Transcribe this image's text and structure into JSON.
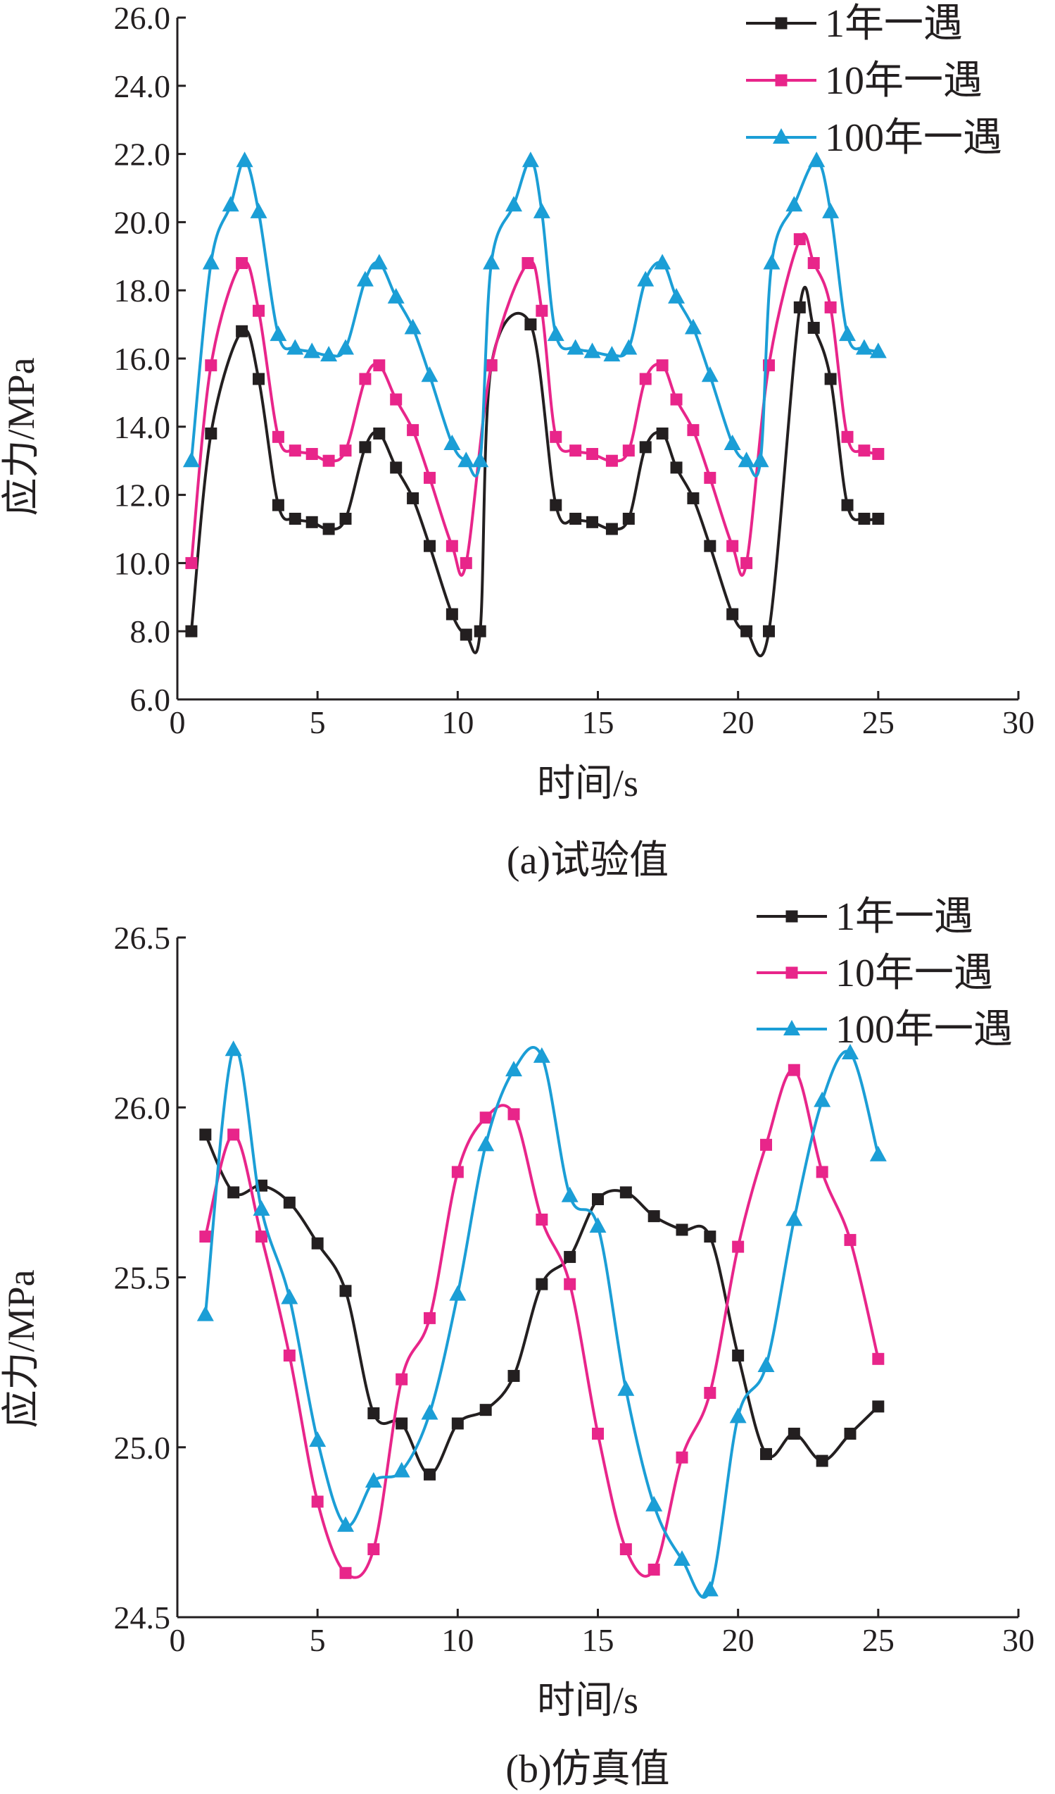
{
  "chart_data": [
    {
      "type": "line",
      "caption": "(a)试验值",
      "xlabel": "时间/s",
      "ylabel": "应力/MPa",
      "xlim": [
        0,
        30
      ],
      "ylim": [
        6.0,
        26.0
      ],
      "xticks": [
        "0",
        "5",
        "10",
        "15",
        "20",
        "25",
        "30"
      ],
      "yticks": [
        "6.0",
        "8.0",
        "10.0",
        "12.0",
        "14.0",
        "16.0",
        "18.0",
        "20.0",
        "22.0",
        "24.0",
        "26.0"
      ],
      "legend_position": "top-right",
      "series": [
        {
          "name": "1年一遇",
          "color": "#231f20",
          "marker": "square",
          "x": [
            0.5,
            1.2,
            2.3,
            2.9,
            3.6,
            4.2,
            4.8,
            5.4,
            6.0,
            6.7,
            7.2,
            7.8,
            8.4,
            9.0,
            9.8,
            10.3,
            10.8,
            11.2,
            12.6,
            13.5,
            14.2,
            14.8,
            15.5,
            16.1,
            16.7,
            17.3,
            17.8,
            18.4,
            19.0,
            19.8,
            20.3,
            21.1,
            22.2,
            22.7,
            23.3,
            23.9,
            24.5,
            25.0
          ],
          "y": [
            8.0,
            13.8,
            16.8,
            15.4,
            11.7,
            11.3,
            11.2,
            11.0,
            11.3,
            13.4,
            13.8,
            12.8,
            11.9,
            10.5,
            8.5,
            7.9,
            8.0,
            15.8,
            17.0,
            11.7,
            11.3,
            11.2,
            11.0,
            11.3,
            13.4,
            13.8,
            12.8,
            11.9,
            10.5,
            8.5,
            8.0,
            8.0,
            17.5,
            16.9,
            15.4,
            11.7,
            11.3,
            11.3
          ]
        },
        {
          "name": "10年一遇",
          "color": "#e8258a",
          "marker": "square",
          "x": [
            0.5,
            1.2,
            2.3,
            2.9,
            3.6,
            4.2,
            4.8,
            5.4,
            6.0,
            6.7,
            7.2,
            7.8,
            8.4,
            9.0,
            9.8,
            10.3,
            11.2,
            12.5,
            13.0,
            13.5,
            14.2,
            14.8,
            15.5,
            16.1,
            16.7,
            17.3,
            17.8,
            18.4,
            19.0,
            19.8,
            20.3,
            21.1,
            22.2,
            22.7,
            23.3,
            23.9,
            24.5,
            25.0
          ],
          "y": [
            10.0,
            15.8,
            18.8,
            17.4,
            13.7,
            13.3,
            13.2,
            13.0,
            13.3,
            15.4,
            15.8,
            14.8,
            13.9,
            12.5,
            10.5,
            10.0,
            15.8,
            18.8,
            17.4,
            13.7,
            13.3,
            13.2,
            13.0,
            13.3,
            15.4,
            15.8,
            14.8,
            13.9,
            12.5,
            10.5,
            10.0,
            15.8,
            19.5,
            18.8,
            17.5,
            13.7,
            13.3,
            13.2
          ]
        },
        {
          "name": "100年一遇",
          "color": "#1b9ed6",
          "marker": "triangle",
          "x": [
            0.5,
            1.2,
            1.9,
            2.4,
            2.9,
            3.6,
            4.2,
            4.8,
            5.4,
            6.0,
            6.7,
            7.2,
            7.8,
            8.4,
            9.0,
            9.8,
            10.3,
            10.8,
            11.2,
            12.0,
            12.6,
            13.0,
            13.5,
            14.2,
            14.8,
            15.5,
            16.1,
            16.7,
            17.3,
            17.8,
            18.4,
            19.0,
            19.8,
            20.3,
            20.8,
            21.2,
            22.0,
            22.8,
            23.3,
            23.9,
            24.5,
            25.0
          ],
          "y": [
            13.0,
            18.8,
            20.5,
            21.8,
            20.3,
            16.7,
            16.3,
            16.2,
            16.1,
            16.3,
            18.3,
            18.8,
            17.8,
            16.9,
            15.5,
            13.5,
            13.0,
            13.0,
            18.8,
            20.5,
            21.8,
            20.3,
            16.7,
            16.3,
            16.2,
            16.1,
            16.3,
            18.3,
            18.8,
            17.8,
            16.9,
            15.5,
            13.5,
            13.0,
            13.0,
            18.8,
            20.5,
            21.8,
            20.3,
            16.7,
            16.3,
            16.2
          ]
        }
      ]
    },
    {
      "type": "line",
      "caption": "(b)仿真值",
      "xlabel": "时间/s",
      "ylabel": "应力/MPa",
      "xlim": [
        0,
        30
      ],
      "ylim": [
        24.5,
        26.5
      ],
      "xticks": [
        "0",
        "5",
        "10",
        "15",
        "20",
        "25",
        "30"
      ],
      "yticks": [
        "24.5",
        "25.0",
        "25.5",
        "26.0",
        "26.5"
      ],
      "legend_position": "top-right",
      "series": [
        {
          "name": "1年一遇",
          "color": "#231f20",
          "marker": "square",
          "x": [
            1,
            2,
            3,
            4,
            5,
            6,
            7,
            8,
            9,
            10,
            11,
            12,
            13,
            14,
            15,
            16,
            17,
            18,
            19,
            20,
            21,
            22,
            23,
            24,
            25
          ],
          "y": [
            25.92,
            25.75,
            25.77,
            25.72,
            25.6,
            25.46,
            25.1,
            25.07,
            24.92,
            25.07,
            25.11,
            25.21,
            25.48,
            25.56,
            25.73,
            25.75,
            25.68,
            25.64,
            25.62,
            25.27,
            24.98,
            25.04,
            24.96,
            25.04,
            25.12
          ]
        },
        {
          "name": "10年一遇",
          "color": "#e8258a",
          "marker": "square",
          "x": [
            1,
            2,
            3,
            4,
            5,
            6,
            7,
            8,
            9,
            10,
            11,
            12,
            13,
            14,
            15,
            16,
            17,
            18,
            19,
            20,
            21,
            22,
            23,
            24,
            25
          ],
          "y": [
            25.62,
            25.92,
            25.62,
            25.27,
            24.84,
            24.63,
            24.7,
            25.2,
            25.38,
            25.81,
            25.97,
            25.98,
            25.67,
            25.48,
            25.04,
            24.7,
            24.64,
            24.97,
            25.16,
            25.59,
            25.89,
            26.11,
            25.81,
            25.61,
            25.26
          ]
        },
        {
          "name": "100年一遇",
          "color": "#1b9ed6",
          "marker": "triangle",
          "x": [
            1,
            2,
            3,
            4,
            5,
            6,
            7,
            8,
            9,
            10,
            11,
            12,
            13,
            14,
            15,
            16,
            17,
            18,
            19,
            20,
            21,
            22,
            23,
            24,
            25
          ],
          "y": [
            25.39,
            26.17,
            25.7,
            25.44,
            25.02,
            24.77,
            24.9,
            24.93,
            25.1,
            25.45,
            25.89,
            26.11,
            26.15,
            25.74,
            25.65,
            25.17,
            24.83,
            24.67,
            24.58,
            25.09,
            25.24,
            25.67,
            26.02,
            26.16,
            25.86
          ]
        }
      ]
    }
  ]
}
